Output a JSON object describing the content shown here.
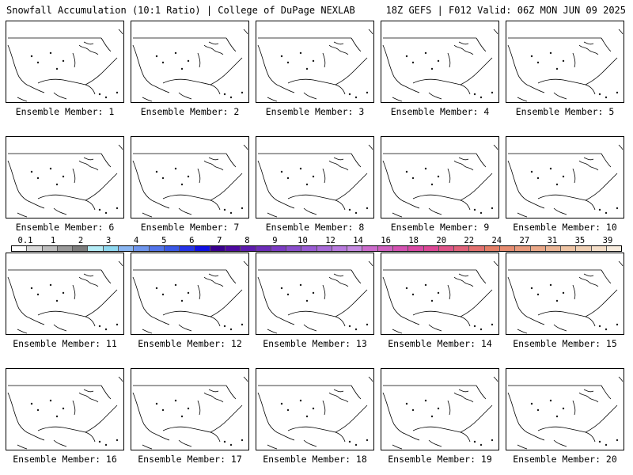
{
  "header": {
    "title_left": "Snowfall Accumulation (10:1 Ratio) | College of DuPage NEXLAB",
    "title_right": "18Z GEFS | F012 Valid: 06Z MON JUN 09 2025"
  },
  "panels": [
    {
      "label": "Ensemble Member: 1"
    },
    {
      "label": "Ensemble Member: 2"
    },
    {
      "label": "Ensemble Member: 3"
    },
    {
      "label": "Ensemble Member: 4"
    },
    {
      "label": "Ensemble Member: 5"
    },
    {
      "label": "Ensemble Member: 6"
    },
    {
      "label": "Ensemble Member: 7"
    },
    {
      "label": "Ensemble Member: 8"
    },
    {
      "label": "Ensemble Member: 9"
    },
    {
      "label": "Ensemble Member: 10"
    },
    {
      "label": "Ensemble Member: 11"
    },
    {
      "label": "Ensemble Member: 12"
    },
    {
      "label": "Ensemble Member: 13"
    },
    {
      "label": "Ensemble Member: 14"
    },
    {
      "label": "Ensemble Member: 15"
    },
    {
      "label": "Ensemble Member: 16"
    },
    {
      "label": "Ensemble Member: 17"
    },
    {
      "label": "Ensemble Member: 18"
    },
    {
      "label": "Ensemble Member: 19"
    },
    {
      "label": "Ensemble Member: 20"
    }
  ],
  "colorbar": {
    "labels": [
      "0.1",
      "1",
      "2",
      "3",
      "4",
      "5",
      "6",
      "7",
      "8",
      "9",
      "10",
      "12",
      "14",
      "16",
      "18",
      "20",
      "22",
      "24",
      "27",
      "31",
      "35",
      "39"
    ],
    "colors": [
      "#ffffff",
      "#d9d9d9",
      "#bdbdbd",
      "#9a9a9a",
      "#7d7d7d",
      "#b4ecf6",
      "#8ed8f0",
      "#8ab6f2",
      "#6f96ee",
      "#5274ea",
      "#3a58e6",
      "#2634e8",
      "#1010e4",
      "#3a0090",
      "#4e0aa0",
      "#5e1cae",
      "#6c2cb8",
      "#7c3cc4",
      "#8a4ecc",
      "#9a5cd4",
      "#a86ad8",
      "#b87ade",
      "#c68ae2",
      "#cc6ccc",
      "#d060c0",
      "#d452b2",
      "#d848a4",
      "#dc4896",
      "#de5488",
      "#e0627a",
      "#e2706e",
      "#e47e66",
      "#e68c70",
      "#e89a7c",
      "#eaa888",
      "#ecb696",
      "#eec4a4",
      "#f0d0b4",
      "#f4dec8",
      "#f8ecde"
    ]
  }
}
